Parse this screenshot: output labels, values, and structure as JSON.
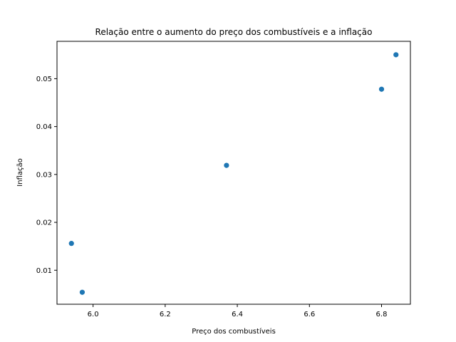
{
  "chart_data": {
    "type": "scatter",
    "title": "Relação entre o aumento do preço dos combustíveis e a inflação",
    "xlabel": "Preço dos combustíveis",
    "ylabel": "Inflação",
    "xlim": [
      5.9,
      6.88
    ],
    "ylim": [
      0.0029,
      0.0578
    ],
    "xticks": [
      6.0,
      6.2,
      6.4,
      6.6,
      6.8
    ],
    "xtick_labels": [
      "6.0",
      "6.2",
      "6.4",
      "6.6",
      "6.8"
    ],
    "yticks": [
      0.01,
      0.02,
      0.03,
      0.04,
      0.05
    ],
    "ytick_labels": [
      "0.01",
      "0.02",
      "0.03",
      "0.04",
      "0.05"
    ],
    "grid": false,
    "points": [
      {
        "x": 5.94,
        "y": 0.0156
      },
      {
        "x": 5.97,
        "y": 0.0054
      },
      {
        "x": 6.37,
        "y": 0.0319
      },
      {
        "x": 6.8,
        "y": 0.0478
      },
      {
        "x": 6.84,
        "y": 0.055
      }
    ],
    "color": "#1f77b4"
  }
}
